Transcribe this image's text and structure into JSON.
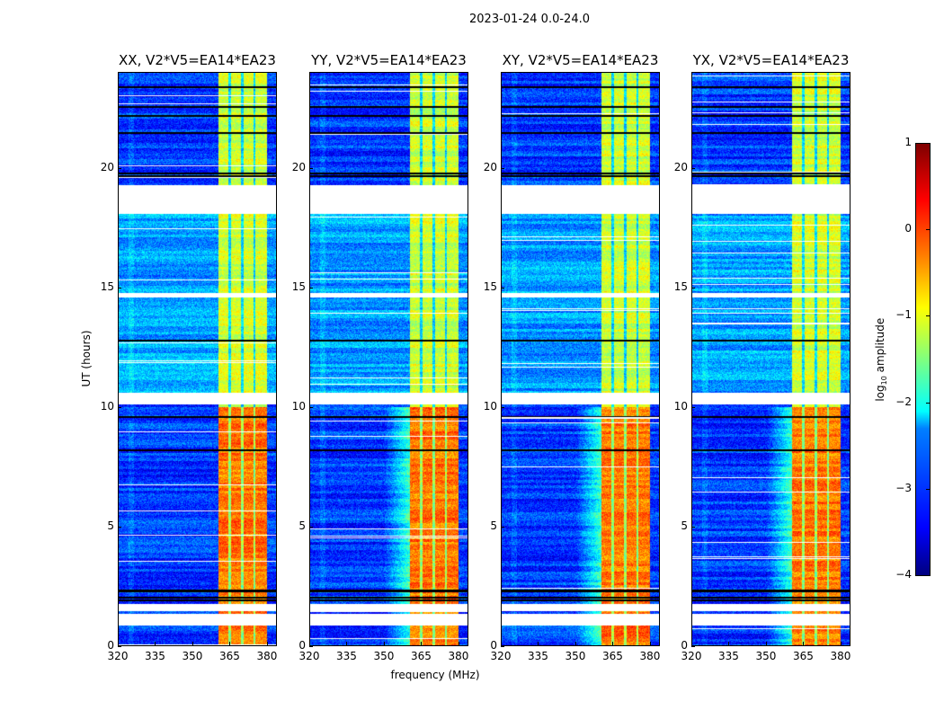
{
  "chart_data": {
    "type": "heatmap",
    "title": "2023-01-24 0.0-24.0",
    "xlabel": "frequency (MHz)",
    "ylabel": "UT (hours)",
    "xlim": [
      320,
      384
    ],
    "ylim": [
      0,
      24
    ],
    "xticks": [
      320,
      335,
      350,
      365,
      380
    ],
    "yticks": [
      0,
      5,
      10,
      15,
      20
    ],
    "panels": [
      {
        "title": "XX, V2*V5=EA14*EA23",
        "edge_glow": false
      },
      {
        "title": "YY, V2*V5=EA14*EA23",
        "edge_glow": true
      },
      {
        "title": "XY, V2*V5=EA14*EA23",
        "edge_glow": true
      },
      {
        "title": "YX, V2*V5=EA14*EA23",
        "edge_glow": true
      }
    ],
    "features": {
      "bright_band_mhz": [
        360.5,
        380
      ],
      "band_channel_lines_mhz": [
        365,
        370,
        375
      ],
      "band_level_before_10h": -0.2,
      "band_level_after_10h": -1.1,
      "background_level": -3.1,
      "flagged_gaps_hours": [
        [
          18.1,
          19.3
        ],
        [
          10.1,
          10.6
        ],
        [
          14.6,
          14.8
        ],
        [
          1.45,
          1.75
        ],
        [
          0.83,
          1.35
        ]
      ],
      "black_rows_hours": [
        19.8,
        19.7,
        22.6,
        22.2,
        21.5,
        23.4,
        12.8,
        9.6,
        8.2,
        2.3,
        2.0,
        1.9
      ]
    },
    "colorbar": {
      "label": "log10 amplitude",
      "label_main": "log",
      "label_sub": "10",
      "label_rest": " amplitude",
      "range": [
        -4,
        1
      ],
      "ticks": [
        "1",
        "0",
        "−1",
        "−2",
        "−3",
        "−4"
      ],
      "tick_values": [
        1,
        0,
        -1,
        -2,
        -3,
        -4
      ],
      "colormap": "jet"
    }
  }
}
